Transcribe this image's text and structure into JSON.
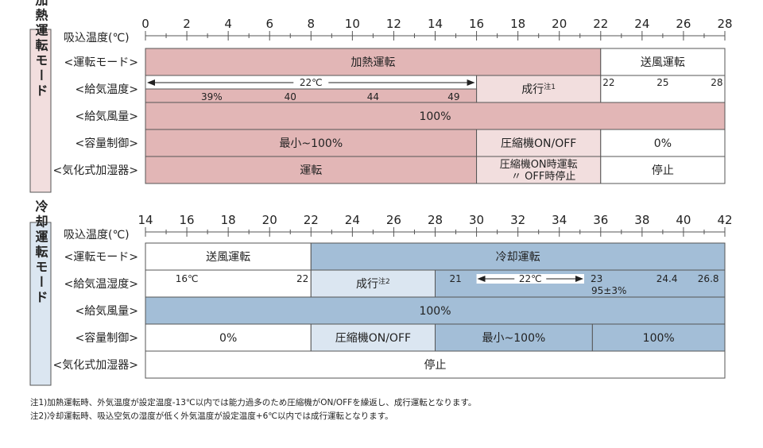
{
  "colors": {
    "heat_dark": "#e2b6b6",
    "heat_light": "#f2dede",
    "heat_side": "#f2dede",
    "cool_dark": "#a3bed7",
    "cool_light": "#dbe6f1",
    "cool_side": "#dbe6f1",
    "border": "#555555",
    "white": "#ffffff"
  },
  "heating": {
    "side_title": "加熱運転モード",
    "axis_label": "吸込温度(℃)",
    "ticks": [
      "0",
      "2",
      "4",
      "6",
      "8",
      "10",
      "12",
      "14",
      "16",
      "18",
      "20",
      "22",
      "24",
      "26",
      "28"
    ],
    "tmin": 0,
    "tmax": 28,
    "rows": [
      {
        "label": "<運転モード>",
        "segments": [
          {
            "from": 0,
            "to": 22,
            "text": "加熱運転",
            "fill": "heat_dark"
          },
          {
            "from": 22,
            "to": 28,
            "text": "送風運転",
            "fill": "white"
          }
        ]
      },
      {
        "label": "<給気温度>",
        "segments": [
          {
            "from": 0,
            "to": 16,
            "text": "",
            "fill": "white"
          },
          {
            "from": 16,
            "to": 22,
            "text": "成行",
            "sup": "注1",
            "fill": "heat_light"
          },
          {
            "from": 22,
            "to": 28,
            "text": "",
            "fill": "white"
          }
        ]
      },
      {
        "label": "<給気風量>",
        "segments": [
          {
            "from": 0,
            "to": 28,
            "text": "100%",
            "fill": "heat_dark"
          }
        ]
      },
      {
        "label": "<容量制御>",
        "segments": [
          {
            "from": 0,
            "to": 16,
            "text": "最小~100%",
            "fill": "heat_dark"
          },
          {
            "from": 16,
            "to": 22,
            "text": "圧縮機ON/OFF",
            "fill": "heat_light"
          },
          {
            "from": 22,
            "to": 28,
            "text": "0%",
            "fill": "white"
          }
        ]
      },
      {
        "label": "<気化式加湿器>",
        "segments": [
          {
            "from": 0,
            "to": 16,
            "text": "運転",
            "fill": "heat_dark"
          },
          {
            "from": 16,
            "to": 22,
            "text": "圧縮機ON時運転",
            "text2": "〃 OFF時停止",
            "fill": "heat_light"
          },
          {
            "from": 22,
            "to": 28,
            "text": "停止",
            "fill": "white"
          }
        ]
      }
    ],
    "supply": {
      "arrow_label": "22℃",
      "arrow_from": 0,
      "arrow_to": 16,
      "bar_from": 0,
      "bar_to": 16,
      "bar_values": [
        {
          "at": 3.2,
          "text": "39%"
        },
        {
          "at": 7,
          "text": "40"
        },
        {
          "at": 11,
          "text": "44"
        },
        {
          "at": 14.9,
          "text": "49"
        }
      ],
      "fan_values": [
        {
          "at": 22.4,
          "text": "22"
        },
        {
          "at": 25,
          "text": "25"
        },
        {
          "at": 27.6,
          "text": "28"
        }
      ]
    }
  },
  "cooling": {
    "side_title": "冷却運転モード",
    "axis_label": "吸込温度(℃)",
    "ticks": [
      "14",
      "16",
      "18",
      "20",
      "22",
      "24",
      "26",
      "28",
      "30",
      "32",
      "34",
      "36",
      "38",
      "40",
      "42"
    ],
    "tmin": 14,
    "tmax": 42,
    "rows": [
      {
        "label": "<運転モード>",
        "segments": [
          {
            "from": 14,
            "to": 22,
            "text": "送風運転",
            "fill": "white"
          },
          {
            "from": 22,
            "to": 42,
            "text": "冷却運転",
            "fill": "cool_dark"
          }
        ]
      },
      {
        "label": "<給気温湿度>",
        "segments": [
          {
            "from": 14,
            "to": 22,
            "text": "",
            "fill": "white"
          },
          {
            "from": 22,
            "to": 28,
            "text": "成行",
            "sup": "注2",
            "fill": "cool_light"
          },
          {
            "from": 28,
            "to": 42,
            "text": "",
            "fill": "cool_dark"
          }
        ]
      },
      {
        "label": "<給気風量>",
        "segments": [
          {
            "from": 14,
            "to": 42,
            "text": "100%",
            "fill": "cool_dark"
          }
        ]
      },
      {
        "label": "<容量制御>",
        "segments": [
          {
            "from": 14,
            "to": 22,
            "text": "0%",
            "fill": "white"
          },
          {
            "from": 22,
            "to": 28,
            "text": "圧縮機ON/OFF",
            "fill": "cool_light"
          },
          {
            "from": 28,
            "to": 35.6,
            "text": "最小~100%",
            "fill": "cool_dark"
          },
          {
            "from": 35.6,
            "to": 42,
            "text": "100%",
            "fill": "cool_dark"
          }
        ]
      },
      {
        "label": "<気化式加湿器>",
        "segments": [
          {
            "from": 14,
            "to": 42,
            "text": "停止",
            "fill": "white"
          }
        ]
      }
    ],
    "supply": {
      "fan_left": "16℃",
      "fan_right": "22",
      "start": "21",
      "arrow_label": "22℃",
      "arrow_from": 30,
      "arrow_to": 35.2,
      "values": [
        {
          "at": 35.8,
          "text": "23"
        },
        {
          "at": 39.2,
          "text": "24.4"
        },
        {
          "at": 41.2,
          "text": "26.8"
        }
      ],
      "humidity": "95±3%"
    }
  },
  "notes": [
    "注1)加熱運転時、外気温度が設定温度-13℃以内では能力過多のため圧縮機がON/OFFを繰返し、成行運転となります。",
    "注2)冷却運転時、吸込空気の湿度が低く外気温度が設定温度+6℃以内では成行運転となります。"
  ]
}
